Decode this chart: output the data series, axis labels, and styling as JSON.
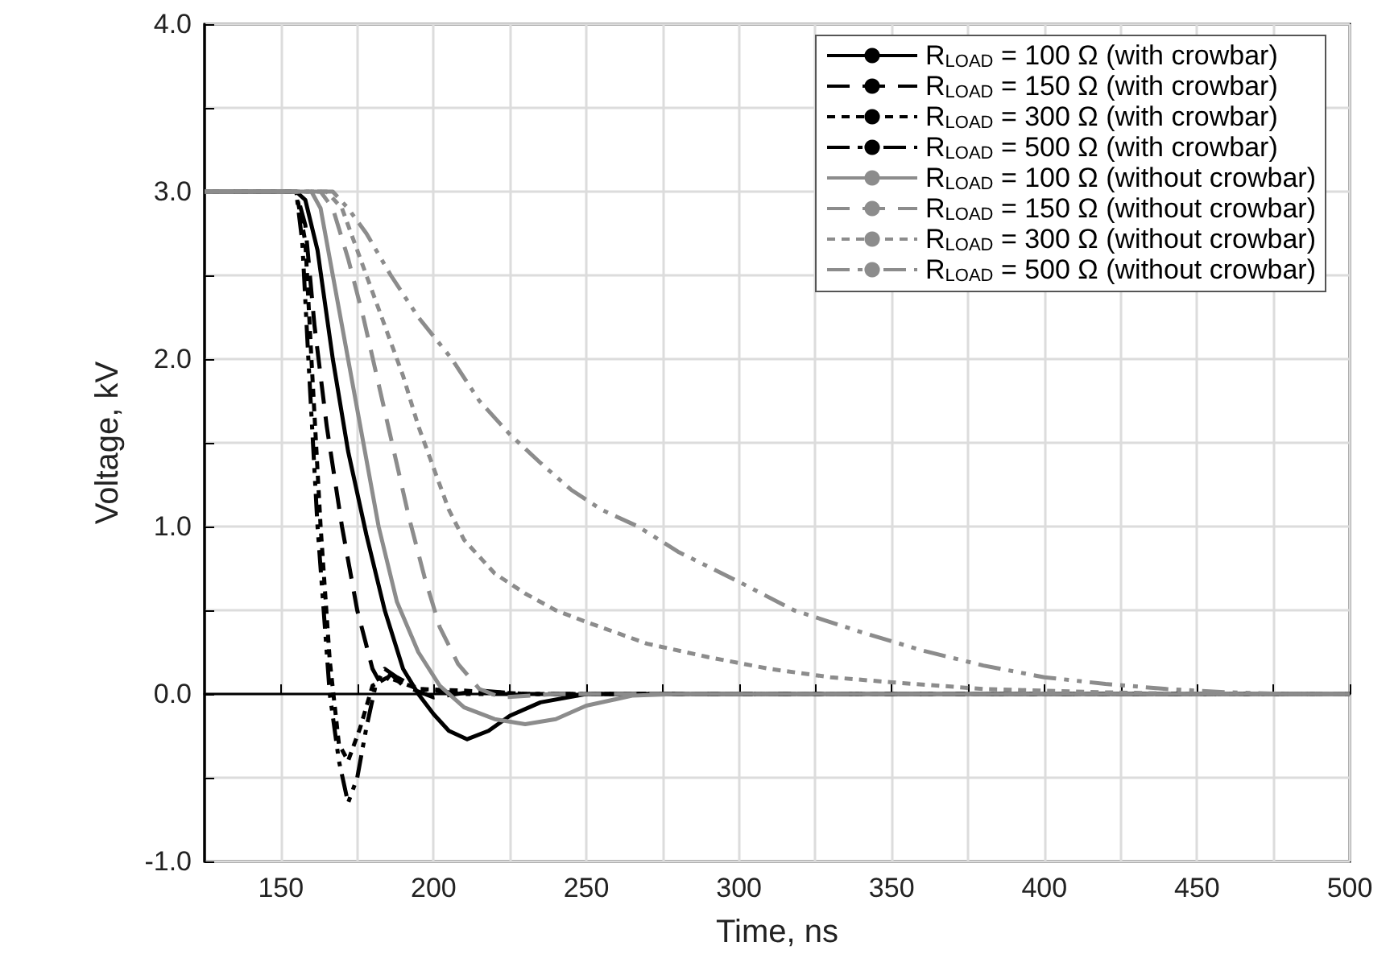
{
  "chart_data": {
    "type": "line",
    "xlabel": "Time, ns",
    "ylabel": "Voltage, kV",
    "xlim": [
      125,
      500
    ],
    "ylim": [
      -1,
      4
    ],
    "xticks": [
      150,
      {
        "value": 175,
        "label": null
      },
      200,
      {
        "value": 225,
        "label": null
      },
      250,
      {
        "value": 275,
        "label": null
      },
      300,
      {
        "value": 325,
        "label": null
      },
      350,
      {
        "value": 375,
        "label": null
      },
      400,
      {
        "value": 425,
        "label": null
      },
      450,
      {
        "value": 475,
        "label": null
      },
      500
    ],
    "yticks": [
      {
        "value": -1,
        "label": "-1.0"
      },
      {
        "value": -0.5,
        "label": null
      },
      {
        "value": 0,
        "label": "0.0"
      },
      {
        "value": 0.5,
        "label": null
      },
      {
        "value": 1,
        "label": "1.0"
      },
      {
        "value": 1.5,
        "label": null
      },
      {
        "value": 2,
        "label": "2.0"
      },
      {
        "value": 2.5,
        "label": null
      },
      {
        "value": 3,
        "label": "3.0"
      },
      {
        "value": 3.5,
        "label": null
      },
      {
        "value": 4,
        "label": "4.0"
      }
    ],
    "grid": true,
    "legend": "top right",
    "marker": "none",
    "series": [
      {
        "name": "R$_{LOAD}$ = 100 Ω (with crowbar)",
        "color": "#000000",
        "line_style": "solid",
        "x": [
          125,
          155,
          158,
          162,
          167,
          172,
          178,
          184,
          190,
          195,
          200,
          205,
          211,
          218,
          225,
          235,
          250,
          500
        ],
        "values": [
          3,
          3,
          2.95,
          2.65,
          2,
          1.45,
          0.95,
          0.5,
          0.15,
          0,
          -0.12,
          -0.22,
          -0.27,
          -0.22,
          -0.13,
          -0.05,
          0,
          0
        ]
      },
      {
        "name": "R$_{LOAD}$ = 150 Ω (with crowbar)",
        "color": "#000000",
        "line_style": "dashed",
        "x": [
          125,
          155,
          158,
          161,
          165,
          170,
          175,
          180,
          183,
          186,
          190,
          200,
          215,
          230,
          500
        ],
        "values": [
          3,
          3,
          2.8,
          2.2,
          1.6,
          1,
          0.5,
          0.15,
          0.05,
          0.12,
          0.05,
          -0.02,
          0.02,
          0,
          0
        ]
      },
      {
        "name": "R$_{LOAD}$ = 300 Ω (with crowbar)",
        "color": "#000000",
        "line_style": "dotted",
        "x": [
          125,
          155,
          158,
          160,
          163,
          166,
          169,
          172,
          176,
          180,
          185,
          195,
          210,
          230,
          500
        ],
        "values": [
          3,
          3,
          2.7,
          2,
          1,
          0.2,
          -0.3,
          -0.4,
          -0.2,
          0.05,
          0.1,
          0.03,
          0.02,
          0,
          0
        ]
      },
      {
        "name": "R$_{LOAD}$ = 500 Ω (with crowbar)",
        "color": "#000000",
        "line_style": "dashdot",
        "x": [
          125,
          155,
          157,
          159,
          162,
          166,
          169,
          172,
          175,
          178,
          181,
          184,
          188,
          195,
          210,
          500
        ],
        "values": [
          3,
          3,
          2.7,
          2,
          1,
          0,
          -0.4,
          -0.65,
          -0.5,
          -0.2,
          0.05,
          0.15,
          0.1,
          0.03,
          0,
          0
        ]
      },
      {
        "name": "R$_{LOAD}$ = 100 Ω (without crowbar)",
        "color": "#8c8c8c",
        "line_style": "solid",
        "x": [
          125,
          160,
          163,
          167,
          172,
          177,
          182,
          188,
          195,
          202,
          210,
          220,
          230,
          240,
          250,
          265,
          280,
          500
        ],
        "values": [
          3,
          3,
          2.9,
          2.5,
          2,
          1.5,
          1,
          0.55,
          0.25,
          0.05,
          -0.08,
          -0.15,
          -0.18,
          -0.15,
          -0.07,
          -0.01,
          0,
          0
        ]
      },
      {
        "name": "R$_{LOAD}$ = 150 Ω (without crowbar)",
        "color": "#8c8c8c",
        "line_style": "dashed",
        "x": [
          125,
          163,
          167,
          172,
          177,
          182,
          187,
          192,
          197,
          202,
          208,
          215,
          222,
          240,
          500
        ],
        "values": [
          3,
          3,
          2.9,
          2.6,
          2.25,
          1.85,
          1.45,
          1.05,
          0.7,
          0.4,
          0.18,
          0.03,
          -0.02,
          0,
          0
        ]
      },
      {
        "name": "R$_{LOAD}$ = 300 Ω (without crowbar)",
        "color": "#8c8c8c",
        "line_style": "dotted",
        "x": [
          125,
          165,
          170,
          175,
          180,
          185,
          190,
          195,
          200,
          205,
          210,
          220,
          230,
          240,
          250,
          270,
          290,
          310,
          330,
          350,
          380,
          420,
          450,
          500
        ],
        "values": [
          3,
          3,
          2.9,
          2.65,
          2.4,
          2.15,
          1.9,
          1.6,
          1.35,
          1.1,
          0.92,
          0.72,
          0.6,
          0.5,
          0.43,
          0.3,
          0.22,
          0.15,
          0.1,
          0.07,
          0.03,
          0.01,
          0,
          0
        ]
      },
      {
        "name": "R$_{LOAD}$ = 500 Ω (without crowbar)",
        "color": "#8c8c8c",
        "line_style": "dashdot",
        "x": [
          125,
          167,
          172,
          178,
          186,
          195,
          206,
          215,
          225,
          235,
          245,
          255,
          267,
          280,
          300,
          318,
          340,
          360,
          380,
          400,
          420,
          440,
          460,
          480,
          500
        ],
        "values": [
          3,
          3,
          2.9,
          2.75,
          2.5,
          2.25,
          2,
          1.75,
          1.55,
          1.38,
          1.22,
          1.1,
          1,
          0.85,
          0.67,
          0.5,
          0.37,
          0.26,
          0.17,
          0.1,
          0.06,
          0.03,
          0.01,
          0,
          0
        ]
      }
    ]
  }
}
